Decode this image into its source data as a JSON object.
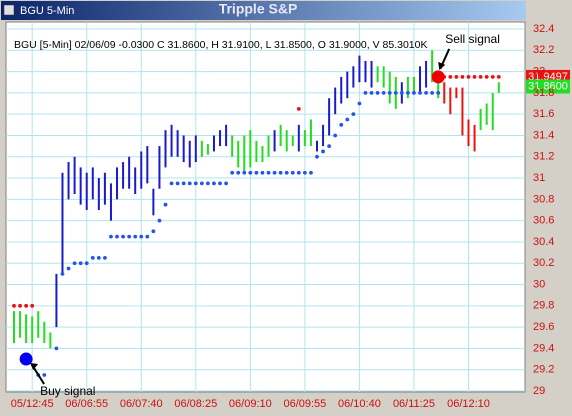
{
  "chart_data": {
    "type": "hlc-bars",
    "window_title": "BGU 5-Min",
    "title": "Tripple S&P",
    "info": "BGU [5-Min] 02/06/09 -0.0300 C 31.8600, H 31.9100, L 31.8500, O 31.9000, V 85.3010K",
    "categories": [
      null,
      null,
      null,
      "05/12:45",
      null,
      null,
      null,
      null,
      null,
      null,
      null,
      null,
      "06/06:55",
      null,
      null,
      null,
      null,
      null,
      null,
      null,
      null,
      "06/07:40",
      null,
      null,
      null,
      null,
      null,
      null,
      null,
      null,
      "06/08:25",
      null,
      null,
      null,
      null,
      null,
      null,
      null,
      null,
      "06/09:10",
      null,
      null,
      null,
      null,
      null,
      null,
      null,
      null,
      "06/09:55",
      null,
      null,
      null,
      null,
      null,
      null,
      null,
      null,
      "06/10:40",
      null,
      null,
      null,
      null,
      null,
      null,
      null,
      null,
      "06/11:25",
      null,
      null,
      null,
      null,
      null,
      null,
      null,
      null,
      "06/12:10",
      null,
      null,
      null,
      null,
      null
    ],
    "high": [
      29.75,
      29.75,
      29.72,
      29.7,
      29.75,
      29.65,
      29.55,
      30.1,
      31.05,
      31.15,
      31.2,
      31.1,
      31.05,
      31.1,
      31.0,
      31.05,
      30.95,
      31.1,
      31.15,
      31.2,
      31.1,
      31.25,
      31.3,
      30.9,
      31.3,
      31.45,
      31.5,
      31.45,
      31.4,
      31.35,
      31.4,
      31.35,
      31.32,
      31.4,
      31.45,
      31.5,
      31.4,
      31.35,
      31.4,
      31.45,
      31.35,
      31.3,
      31.4,
      31.45,
      31.5,
      31.45,
      31.4,
      31.5,
      31.45,
      31.55,
      31.35,
      31.5,
      31.75,
      31.85,
      31.95,
      32.0,
      32.05,
      32.15,
      32.1,
      32.1,
      32.05,
      32.05,
      32.0,
      31.95,
      31.9,
      31.95,
      31.95,
      32.05,
      32.1,
      32.2,
      31.9,
      31.9,
      31.85,
      31.85,
      31.85,
      31.55,
      31.5,
      31.65,
      31.7,
      31.8,
      31.9
    ],
    "low": [
      29.45,
      29.5,
      29.45,
      29.45,
      29.5,
      29.45,
      29.4,
      29.6,
      30.1,
      30.8,
      30.85,
      30.75,
      30.7,
      30.8,
      30.7,
      30.75,
      30.6,
      30.8,
      30.9,
      30.9,
      30.85,
      30.9,
      30.95,
      30.65,
      30.9,
      31.1,
      31.2,
      31.2,
      31.15,
      31.1,
      31.15,
      31.2,
      31.22,
      31.25,
      31.3,
      31.3,
      31.2,
      31.1,
      31.05,
      31.1,
      31.15,
      31.15,
      31.2,
      31.25,
      31.3,
      31.25,
      31.3,
      31.25,
      31.3,
      31.3,
      31.25,
      31.3,
      31.4,
      31.6,
      31.7,
      31.75,
      31.85,
      31.9,
      31.9,
      31.85,
      31.9,
      31.85,
      31.7,
      31.65,
      31.7,
      31.75,
      31.8,
      31.8,
      31.85,
      31.9,
      31.75,
      31.7,
      31.6,
      31.75,
      31.4,
      31.3,
      31.25,
      31.45,
      31.5,
      31.45,
      31.8
    ],
    "bar_colors": [
      "#22dd22",
      "#22dd22",
      "#22dd22",
      "#22dd22",
      "#22dd22",
      "#22dd22",
      "#22dd22",
      "#1a1acc",
      "#1a1acc",
      "#1a1acc",
      "#1a1acc",
      "#1a1acc",
      "#1a1acc",
      "#1a1acc",
      "#1a1acc",
      "#1a1acc",
      "#1a1acc",
      "#1a1acc",
      "#1a1acc",
      "#1a1acc",
      "#1a1acc",
      "#1a1acc",
      "#1a1acc",
      "#1a1acc",
      "#1a1acc",
      "#1a1acc",
      "#1a1acc",
      "#1a1acc",
      "#1a1acc",
      "#1a1acc",
      "#1a1acc",
      "#22dd22",
      "#22dd22",
      "#1a1acc",
      "#1a1acc",
      "#1a1acc",
      "#22dd22",
      "#22dd22",
      "#22dd22",
      "#22dd22",
      "#22dd22",
      "#22dd22",
      "#22dd22",
      "#1a1acc",
      "#22dd22",
      "#22dd22",
      "#22dd22",
      "#1a1acc",
      "#22dd22",
      "#22dd22",
      "#1a1acc",
      "#1a1acc",
      "#1a1acc",
      "#1a1acc",
      "#1a1acc",
      "#1a1acc",
      "#1a1acc",
      "#1a1acc",
      "#1a1acc",
      "#1a1acc",
      "#22dd22",
      "#22dd22",
      "#22dd22",
      "#22dd22",
      "#1a1acc",
      "#22dd22",
      "#22dd22",
      "#1a1acc",
      "#1a1acc",
      "#22dd22",
      "#22dd22",
      "#ee1111",
      "#ee1111",
      "#ee1111",
      "#ee1111",
      "#ee1111",
      "#ee1111",
      "#22dd22",
      "#22dd22",
      "#22dd22",
      "#22dd22"
    ],
    "series": [
      {
        "color": "#2255ee",
        "values": [
          null,
          null,
          null,
          null,
          29.15,
          29.15,
          null,
          29.4,
          30.1,
          30.15,
          30.2,
          30.2,
          30.2,
          30.25,
          30.25,
          30.25,
          30.45,
          30.45,
          30.45,
          30.45,
          30.45,
          30.45,
          30.45,
          30.5,
          30.6,
          30.75,
          30.95,
          30.95,
          30.95,
          30.95,
          30.95,
          30.95,
          30.95,
          30.95,
          30.95,
          30.95,
          31.05,
          31.05,
          31.05,
          31.05,
          31.05,
          31.05,
          31.05,
          31.05,
          31.05,
          31.05,
          31.05,
          31.05,
          31.05,
          31.05,
          31.2,
          31.25,
          31.3,
          31.4,
          31.5,
          31.55,
          31.6,
          31.7,
          31.8,
          31.8,
          31.8,
          31.8,
          31.8,
          31.8,
          31.8,
          31.8,
          31.8,
          31.8,
          31.8,
          31.8,
          31.8,
          null,
          null,
          null,
          null,
          null,
          null,
          null,
          null,
          null,
          null
        ]
      },
      {
        "color": "#ee1111",
        "values": [
          29.8,
          29.8,
          29.8,
          29.8,
          null,
          null,
          null,
          null,
          null,
          null,
          null,
          null,
          null,
          null,
          null,
          null,
          null,
          null,
          null,
          null,
          null,
          null,
          null,
          null,
          null,
          null,
          null,
          null,
          null,
          null,
          null,
          null,
          null,
          null,
          null,
          null,
          null,
          null,
          null,
          null,
          null,
          null,
          null,
          null,
          null,
          null,
          null,
          31.65,
          null,
          null,
          null,
          null,
          null,
          null,
          null,
          null,
          null,
          null,
          null,
          null,
          null,
          null,
          null,
          null,
          null,
          null,
          null,
          null,
          null,
          null,
          null,
          31.95,
          31.95,
          31.95,
          31.95,
          31.95,
          31.95,
          31.95,
          31.95,
          31.95,
          31.95
        ]
      }
    ],
    "signals": [
      {
        "label": "Buy signal",
        "index": 2,
        "value": 29.3,
        "color": "#0000ee"
      },
      {
        "label": "Sell signal",
        "index": 70,
        "value": 31.95,
        "color": "#ee0000"
      }
    ],
    "price_tags": [
      {
        "value": 31.9497,
        "label": "31.9497",
        "color": "#ee1111"
      },
      {
        "value": 31.86,
        "label": "31.8600",
        "color": "#22dd22"
      }
    ],
    "ylim": [
      29,
      32.4
    ],
    "yticks": [
      29,
      29.2,
      29.4,
      29.6,
      29.8,
      30,
      30.2,
      30.4,
      30.6,
      30.8,
      31,
      31.2,
      31.4,
      31.6,
      31.8,
      32,
      32.2,
      32.4
    ],
    "grid": true
  }
}
